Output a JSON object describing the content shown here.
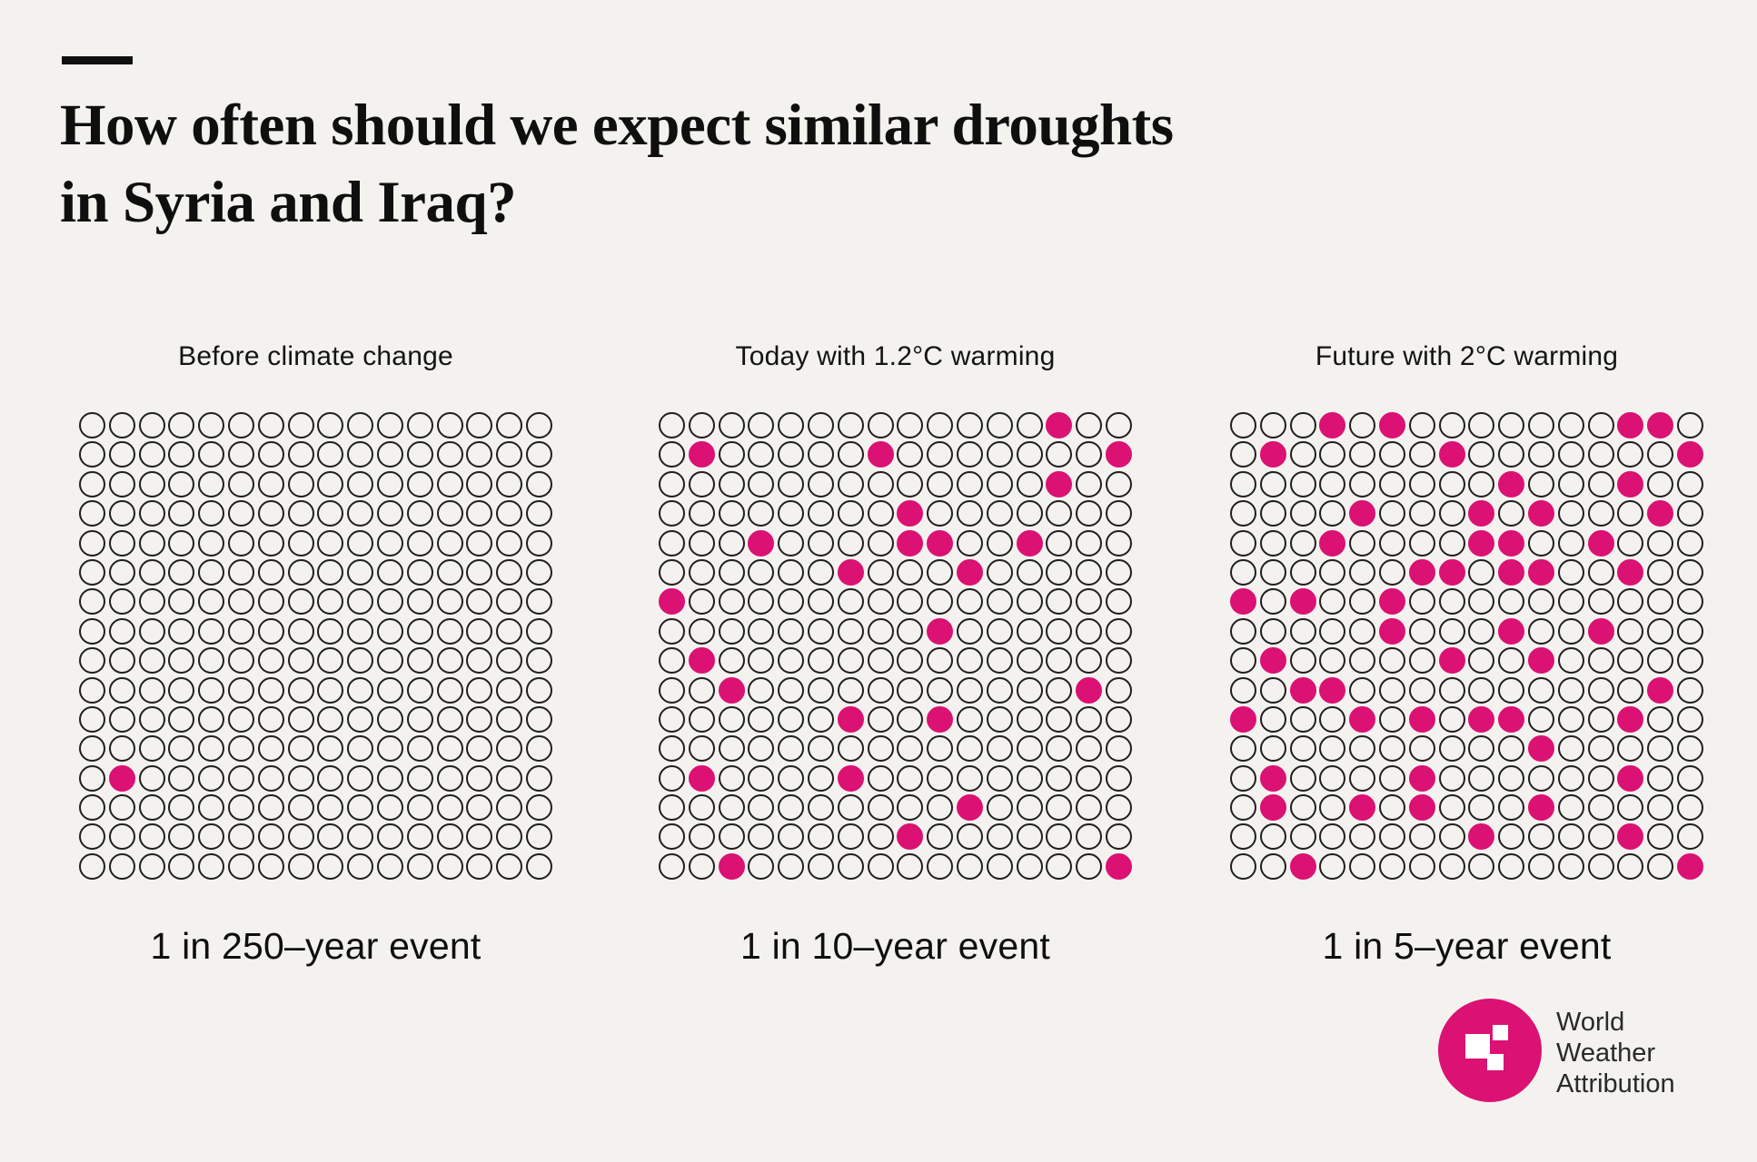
{
  "header": {
    "title_line1": "How often should we expect similar droughts",
    "title_line2": "in Syria and Iraq?"
  },
  "colors": {
    "background": "#f3f2ef",
    "ink": "#0f0f0f",
    "dot_outline": "#1f1f1f",
    "accent_pink": "#db1173"
  },
  "logo": {
    "lines": [
      "World",
      "Weather",
      "Attribution"
    ]
  },
  "chart_data": {
    "type": "waffle",
    "title": "How often should we expect similar droughts in Syria and Iraq?",
    "grid": {
      "rows": 16,
      "cols": 16,
      "dots_per_panel": 256
    },
    "legend_position": "none",
    "series": [
      {
        "name": "Before climate change",
        "label": "1 in 250–year event",
        "return_period_years": 250,
        "highlighted_count": 1,
        "highlighted_cells": [
          [
            13,
            2
          ]
        ]
      },
      {
        "name": "Today with 1.2°C warming",
        "label": "1 in 10–year event",
        "return_period_years": 10,
        "highlighted_count": 25,
        "highlighted_cells": [
          [
            1,
            14
          ],
          [
            2,
            2
          ],
          [
            2,
            8
          ],
          [
            2,
            16
          ],
          [
            3,
            14
          ],
          [
            4,
            9
          ],
          [
            5,
            4
          ],
          [
            5,
            9
          ],
          [
            5,
            10
          ],
          [
            5,
            13
          ],
          [
            6,
            7
          ],
          [
            6,
            11
          ],
          [
            7,
            1
          ],
          [
            8,
            10
          ],
          [
            9,
            2
          ],
          [
            10,
            3
          ],
          [
            10,
            15
          ],
          [
            11,
            7
          ],
          [
            11,
            10
          ],
          [
            13,
            2
          ],
          [
            13,
            7
          ],
          [
            14,
            11
          ],
          [
            15,
            9
          ],
          [
            16,
            3
          ],
          [
            16,
            16
          ]
        ]
      },
      {
        "name": "Future with 2°C warming",
        "label": "1 in 5–year event",
        "return_period_years": 5,
        "highlighted_count": 52,
        "highlighted_cells": [
          [
            1,
            4
          ],
          [
            1,
            6
          ],
          [
            1,
            14
          ],
          [
            1,
            15
          ],
          [
            2,
            2
          ],
          [
            2,
            8
          ],
          [
            2,
            16
          ],
          [
            3,
            10
          ],
          [
            3,
            14
          ],
          [
            4,
            5
          ],
          [
            4,
            9
          ],
          [
            4,
            11
          ],
          [
            4,
            15
          ],
          [
            5,
            4
          ],
          [
            5,
            9
          ],
          [
            5,
            10
          ],
          [
            5,
            13
          ],
          [
            6,
            7
          ],
          [
            6,
            8
          ],
          [
            6,
            10
          ],
          [
            6,
            11
          ],
          [
            6,
            14
          ],
          [
            7,
            1
          ],
          [
            7,
            3
          ],
          [
            7,
            6
          ],
          [
            8,
            6
          ],
          [
            8,
            10
          ],
          [
            8,
            13
          ],
          [
            9,
            2
          ],
          [
            9,
            8
          ],
          [
            9,
            11
          ],
          [
            10,
            3
          ],
          [
            10,
            4
          ],
          [
            10,
            15
          ],
          [
            11,
            1
          ],
          [
            11,
            5
          ],
          [
            11,
            7
          ],
          [
            11,
            9
          ],
          [
            11,
            10
          ],
          [
            11,
            14
          ],
          [
            12,
            11
          ],
          [
            13,
            2
          ],
          [
            13,
            7
          ],
          [
            13,
            14
          ],
          [
            14,
            2
          ],
          [
            14,
            5
          ],
          [
            14,
            7
          ],
          [
            14,
            11
          ],
          [
            15,
            9
          ],
          [
            15,
            14
          ],
          [
            16,
            3
          ],
          [
            16,
            16
          ]
        ]
      }
    ]
  }
}
